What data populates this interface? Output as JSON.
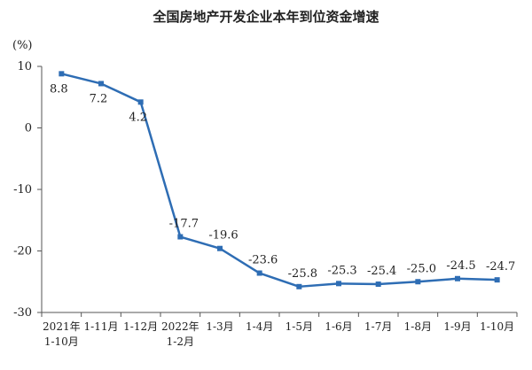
{
  "chart_data": {
    "type": "line",
    "title": "全国房地产开发企业本年到位资金增速",
    "unit_label": "(%)",
    "categories": [
      [
        "2021年",
        "1-10月"
      ],
      [
        "1-11月"
      ],
      [
        "1-12月"
      ],
      [
        "2022年",
        "1-2月"
      ],
      [
        "1-3月"
      ],
      [
        "1-4月"
      ],
      [
        "1-5月"
      ],
      [
        "1-6月"
      ],
      [
        "1-7月"
      ],
      [
        "1-8月"
      ],
      [
        "1-9月"
      ],
      [
        "1-10月"
      ]
    ],
    "values": [
      8.8,
      7.2,
      4.2,
      -17.7,
      -19.6,
      -23.6,
      -25.8,
      -25.3,
      -25.4,
      -25.0,
      -24.5,
      -24.7
    ],
    "data_labels": [
      "8.8",
      "7.2",
      "4.2",
      "-17.7",
      "-19.6",
      "-23.6",
      "-25.8",
      "-25.3",
      "-25.4",
      "-25.0",
      "-24.5",
      "-24.7"
    ],
    "yticks": [
      "10",
      "0",
      "-10",
      "-20",
      "-30"
    ],
    "ylim": [
      -30,
      10
    ],
    "grid": false,
    "legend": "none",
    "colors": {
      "line": "#2e6db4",
      "axis": "#555555"
    }
  }
}
